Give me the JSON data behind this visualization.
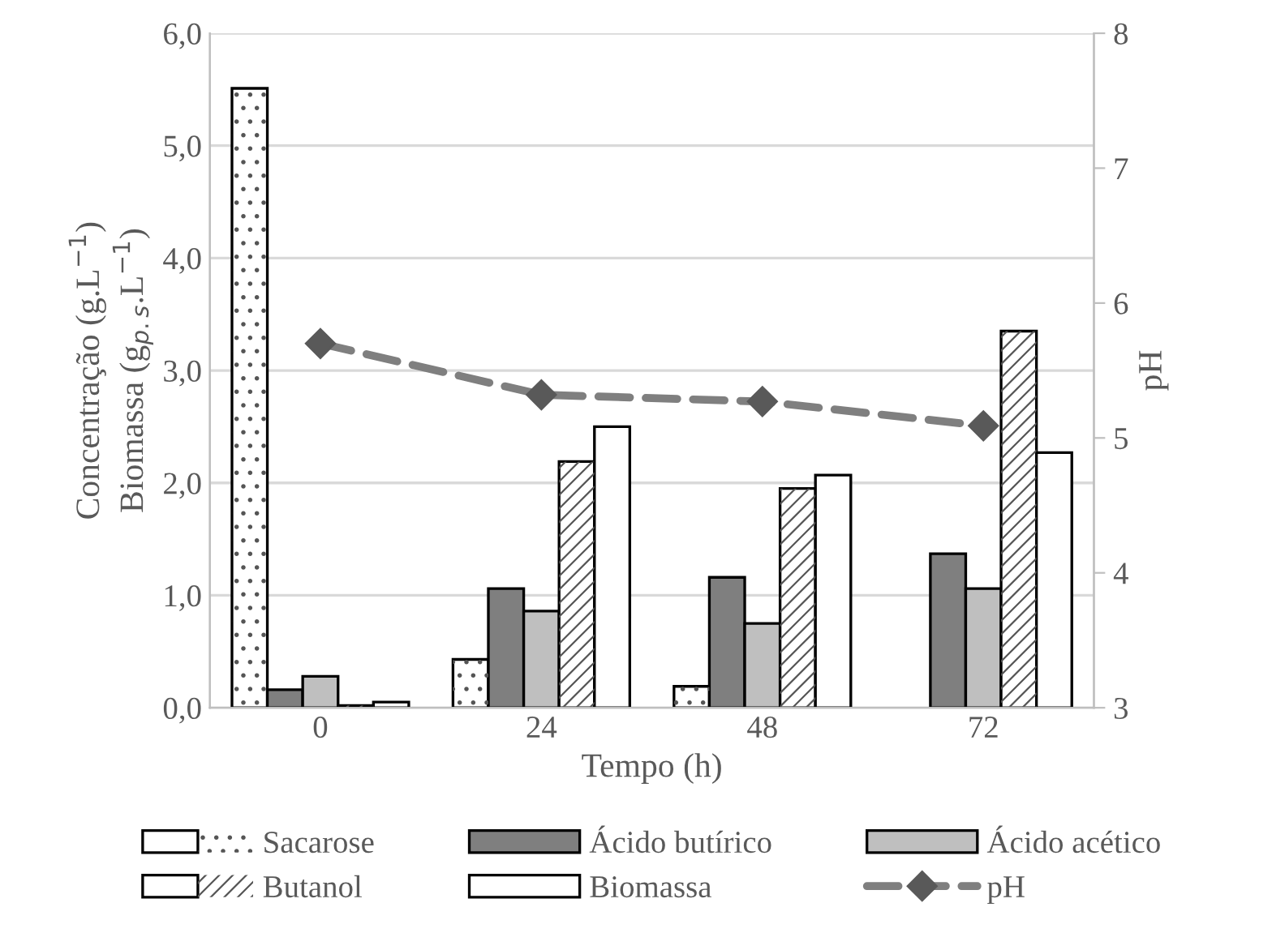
{
  "chart_data": {
    "type": "bar",
    "xlabel": "Tempo (h)",
    "ylabel": "Concentração (g.L$^{−1}$)\nBiomassa (g$_{p.s}$.L$^{−1}$)",
    "y2label": "pH",
    "categories": [
      "0",
      "24",
      "48",
      "72"
    ],
    "series": [
      {
        "name": "Sacarose",
        "color": "#ffffff",
        "values": [
          5.51,
          0.43,
          0.19,
          0.0
        ]
      },
      {
        "name": "Ácido butírico",
        "color": "#7f7f7f",
        "values": [
          0.16,
          1.06,
          1.16,
          1.37
        ]
      },
      {
        "name": "Ácido acético",
        "color": "#bfbfbf",
        "values": [
          0.28,
          0.86,
          0.75,
          1.06
        ]
      },
      {
        "name": "Butanol",
        "color": "#ffffff",
        "values": [
          0.02,
          2.19,
          1.95,
          3.35
        ]
      },
      {
        "name": "Biomassa",
        "color": "#ffffff",
        "values": [
          0.05,
          2.5,
          2.07,
          2.27
        ]
      },
      {
        "name": "pH",
        "type": "line",
        "axis": "y2",
        "color": "#7f7f7f",
        "marker": "diamond",
        "line_style": "dashed",
        "values": [
          5.7,
          5.32,
          5.27,
          5.09
        ]
      }
    ],
    "ylim": [
      0,
      6
    ],
    "yticks": [
      {
        "value": 0,
        "label": "0,0"
      },
      {
        "value": 1,
        "label": "1,0"
      },
      {
        "value": 2,
        "label": "2,0"
      },
      {
        "value": 3,
        "label": "3,0"
      },
      {
        "value": 4,
        "label": "4,0"
      },
      {
        "value": 5,
        "label": "5,0"
      },
      {
        "value": 6,
        "label": "6,0"
      }
    ],
    "y2lim": [
      3,
      8
    ],
    "y2ticks": [
      3,
      4,
      5,
      6,
      7,
      8
    ],
    "grid": "y",
    "legend": "bottom"
  }
}
